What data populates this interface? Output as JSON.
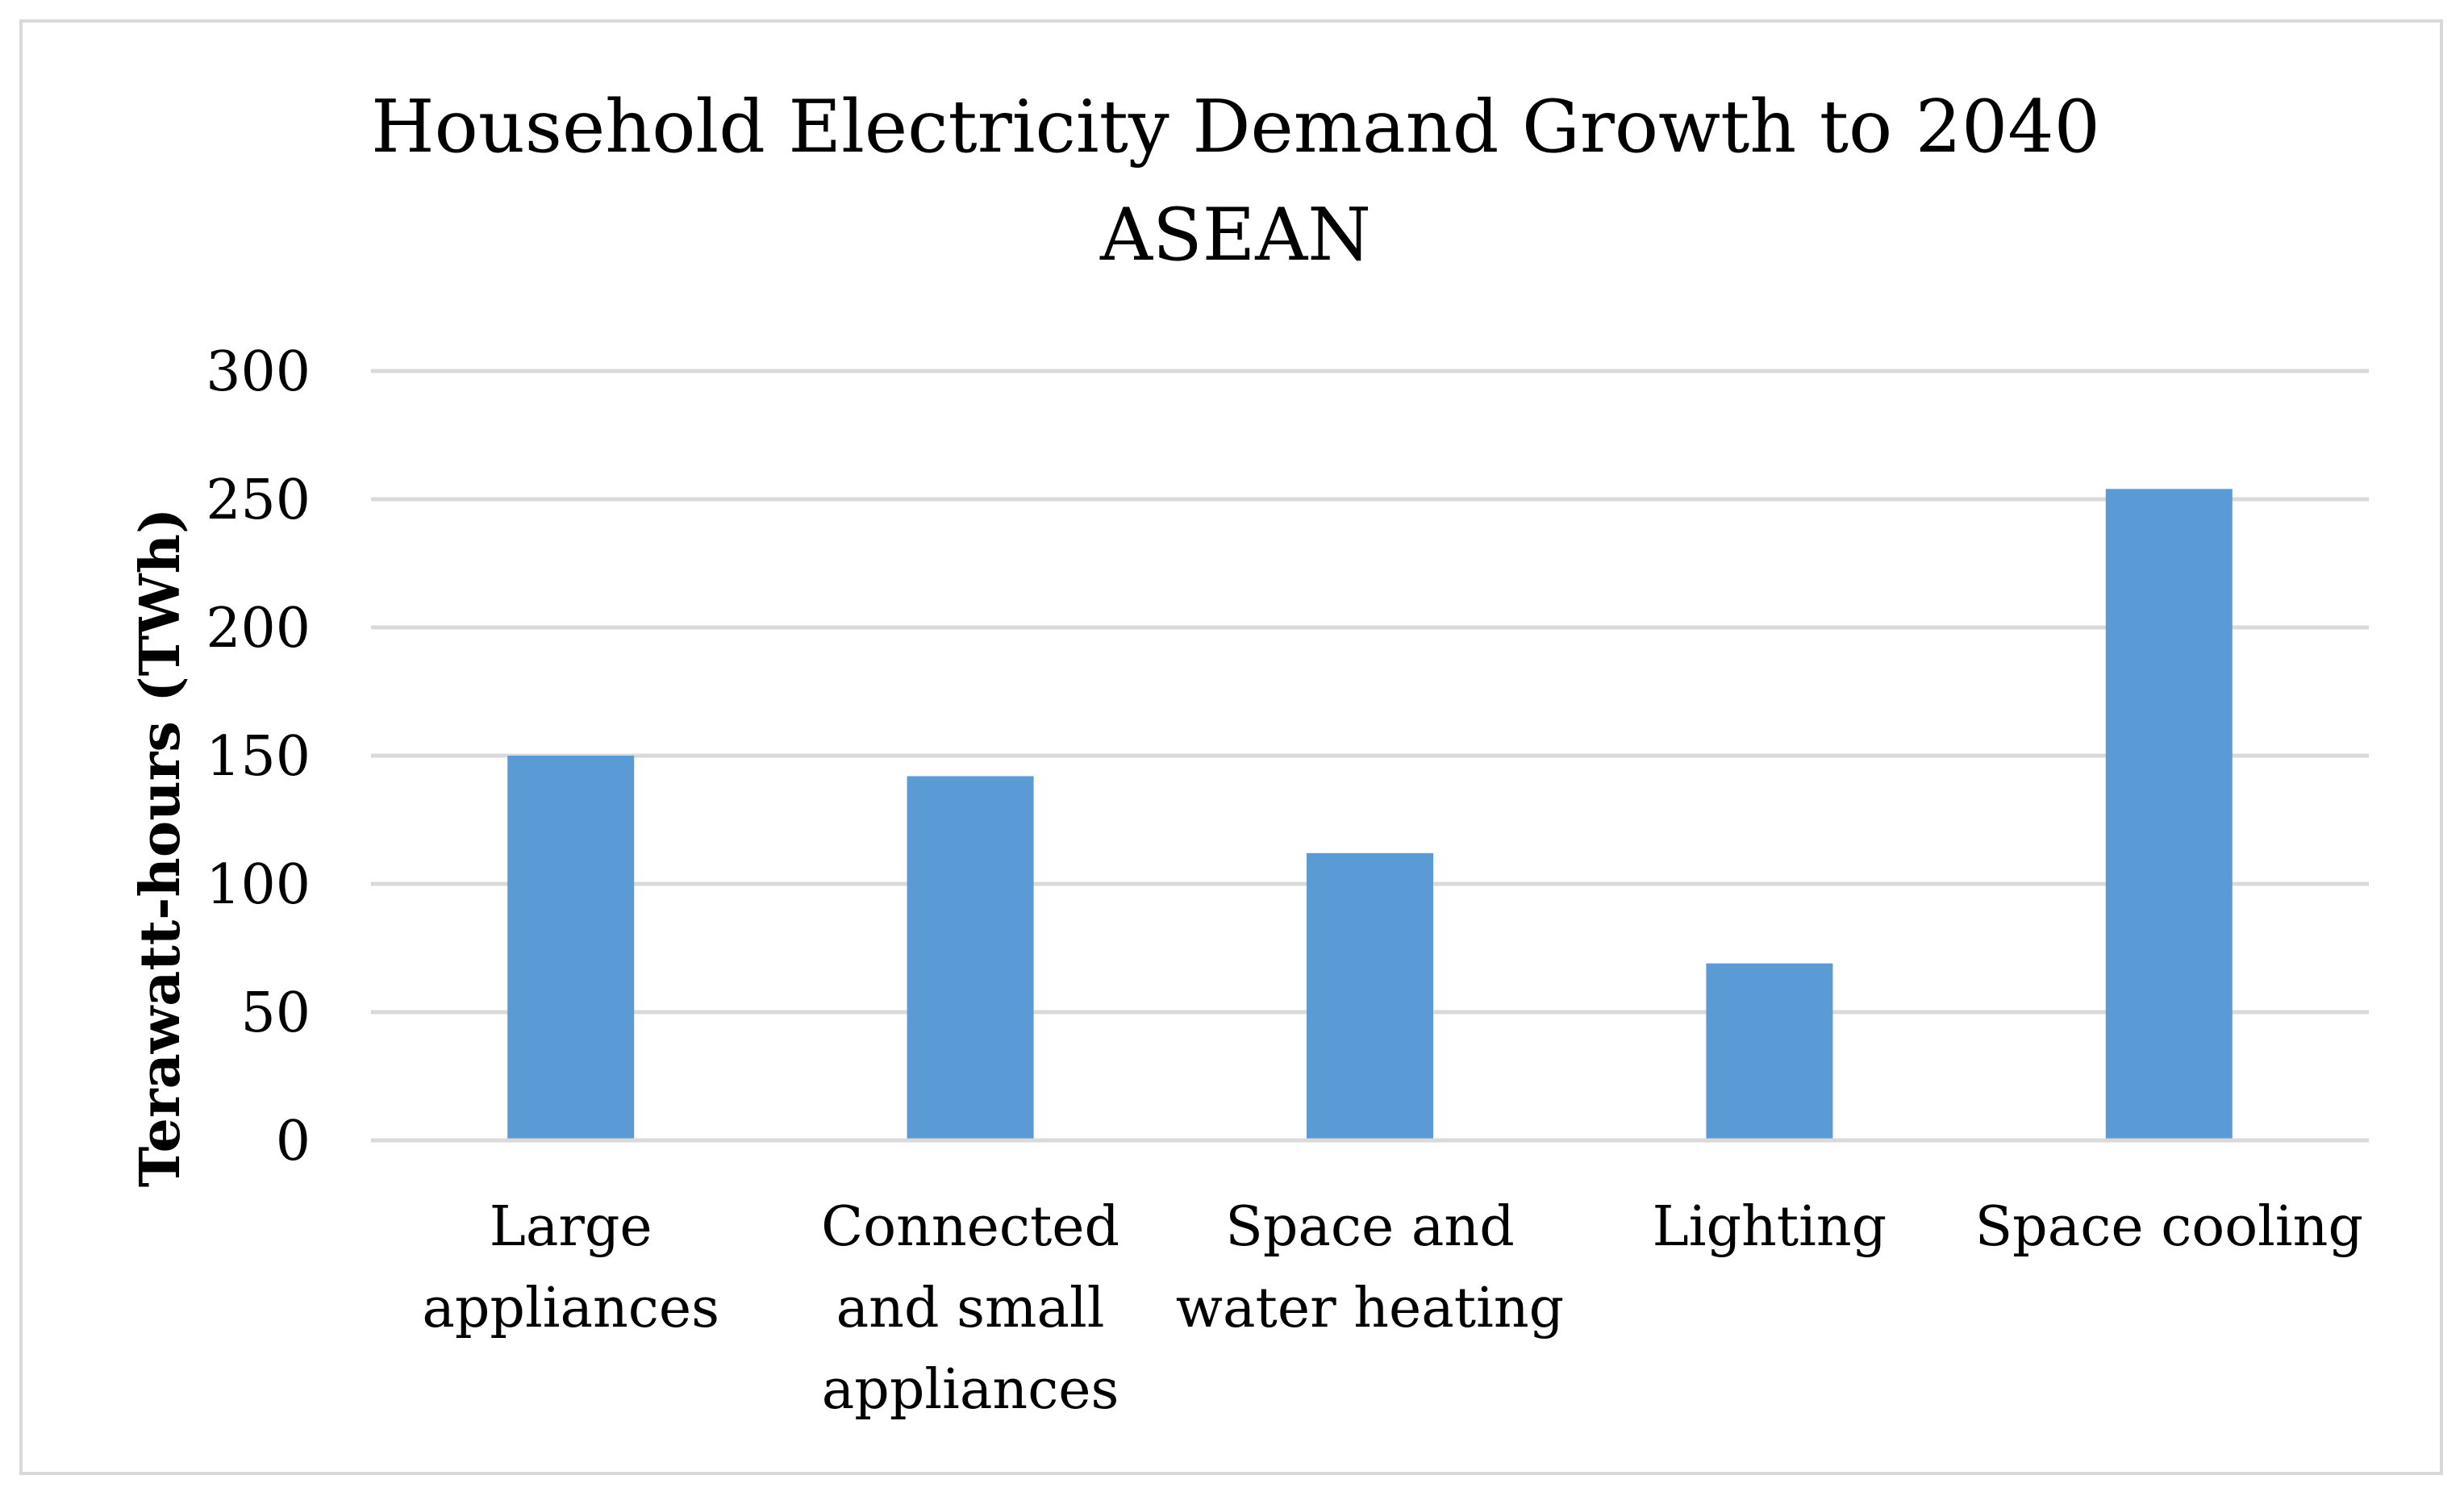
{
  "chart_data": {
    "type": "bar",
    "title": "Household Electricity Demand Growth to 2040",
    "subtitle": "ASEAN",
    "xlabel": "",
    "ylabel": "Terawatt-hours (TWh)",
    "ylim": [
      0,
      300
    ],
    "yticks": [
      0,
      50,
      100,
      150,
      200,
      250,
      300
    ],
    "grid": true,
    "legend": "none",
    "categories": [
      [
        "Large",
        "appliances"
      ],
      [
        "Connected",
        "and small",
        "appliances"
      ],
      [
        "Space and",
        "water heating"
      ],
      [
        "Lighting"
      ],
      [
        "Space cooling"
      ]
    ],
    "values": [
      150,
      142,
      112,
      69,
      254
    ],
    "bar_color": "#5b9bd5",
    "grid_color": "#d9d9d9"
  }
}
